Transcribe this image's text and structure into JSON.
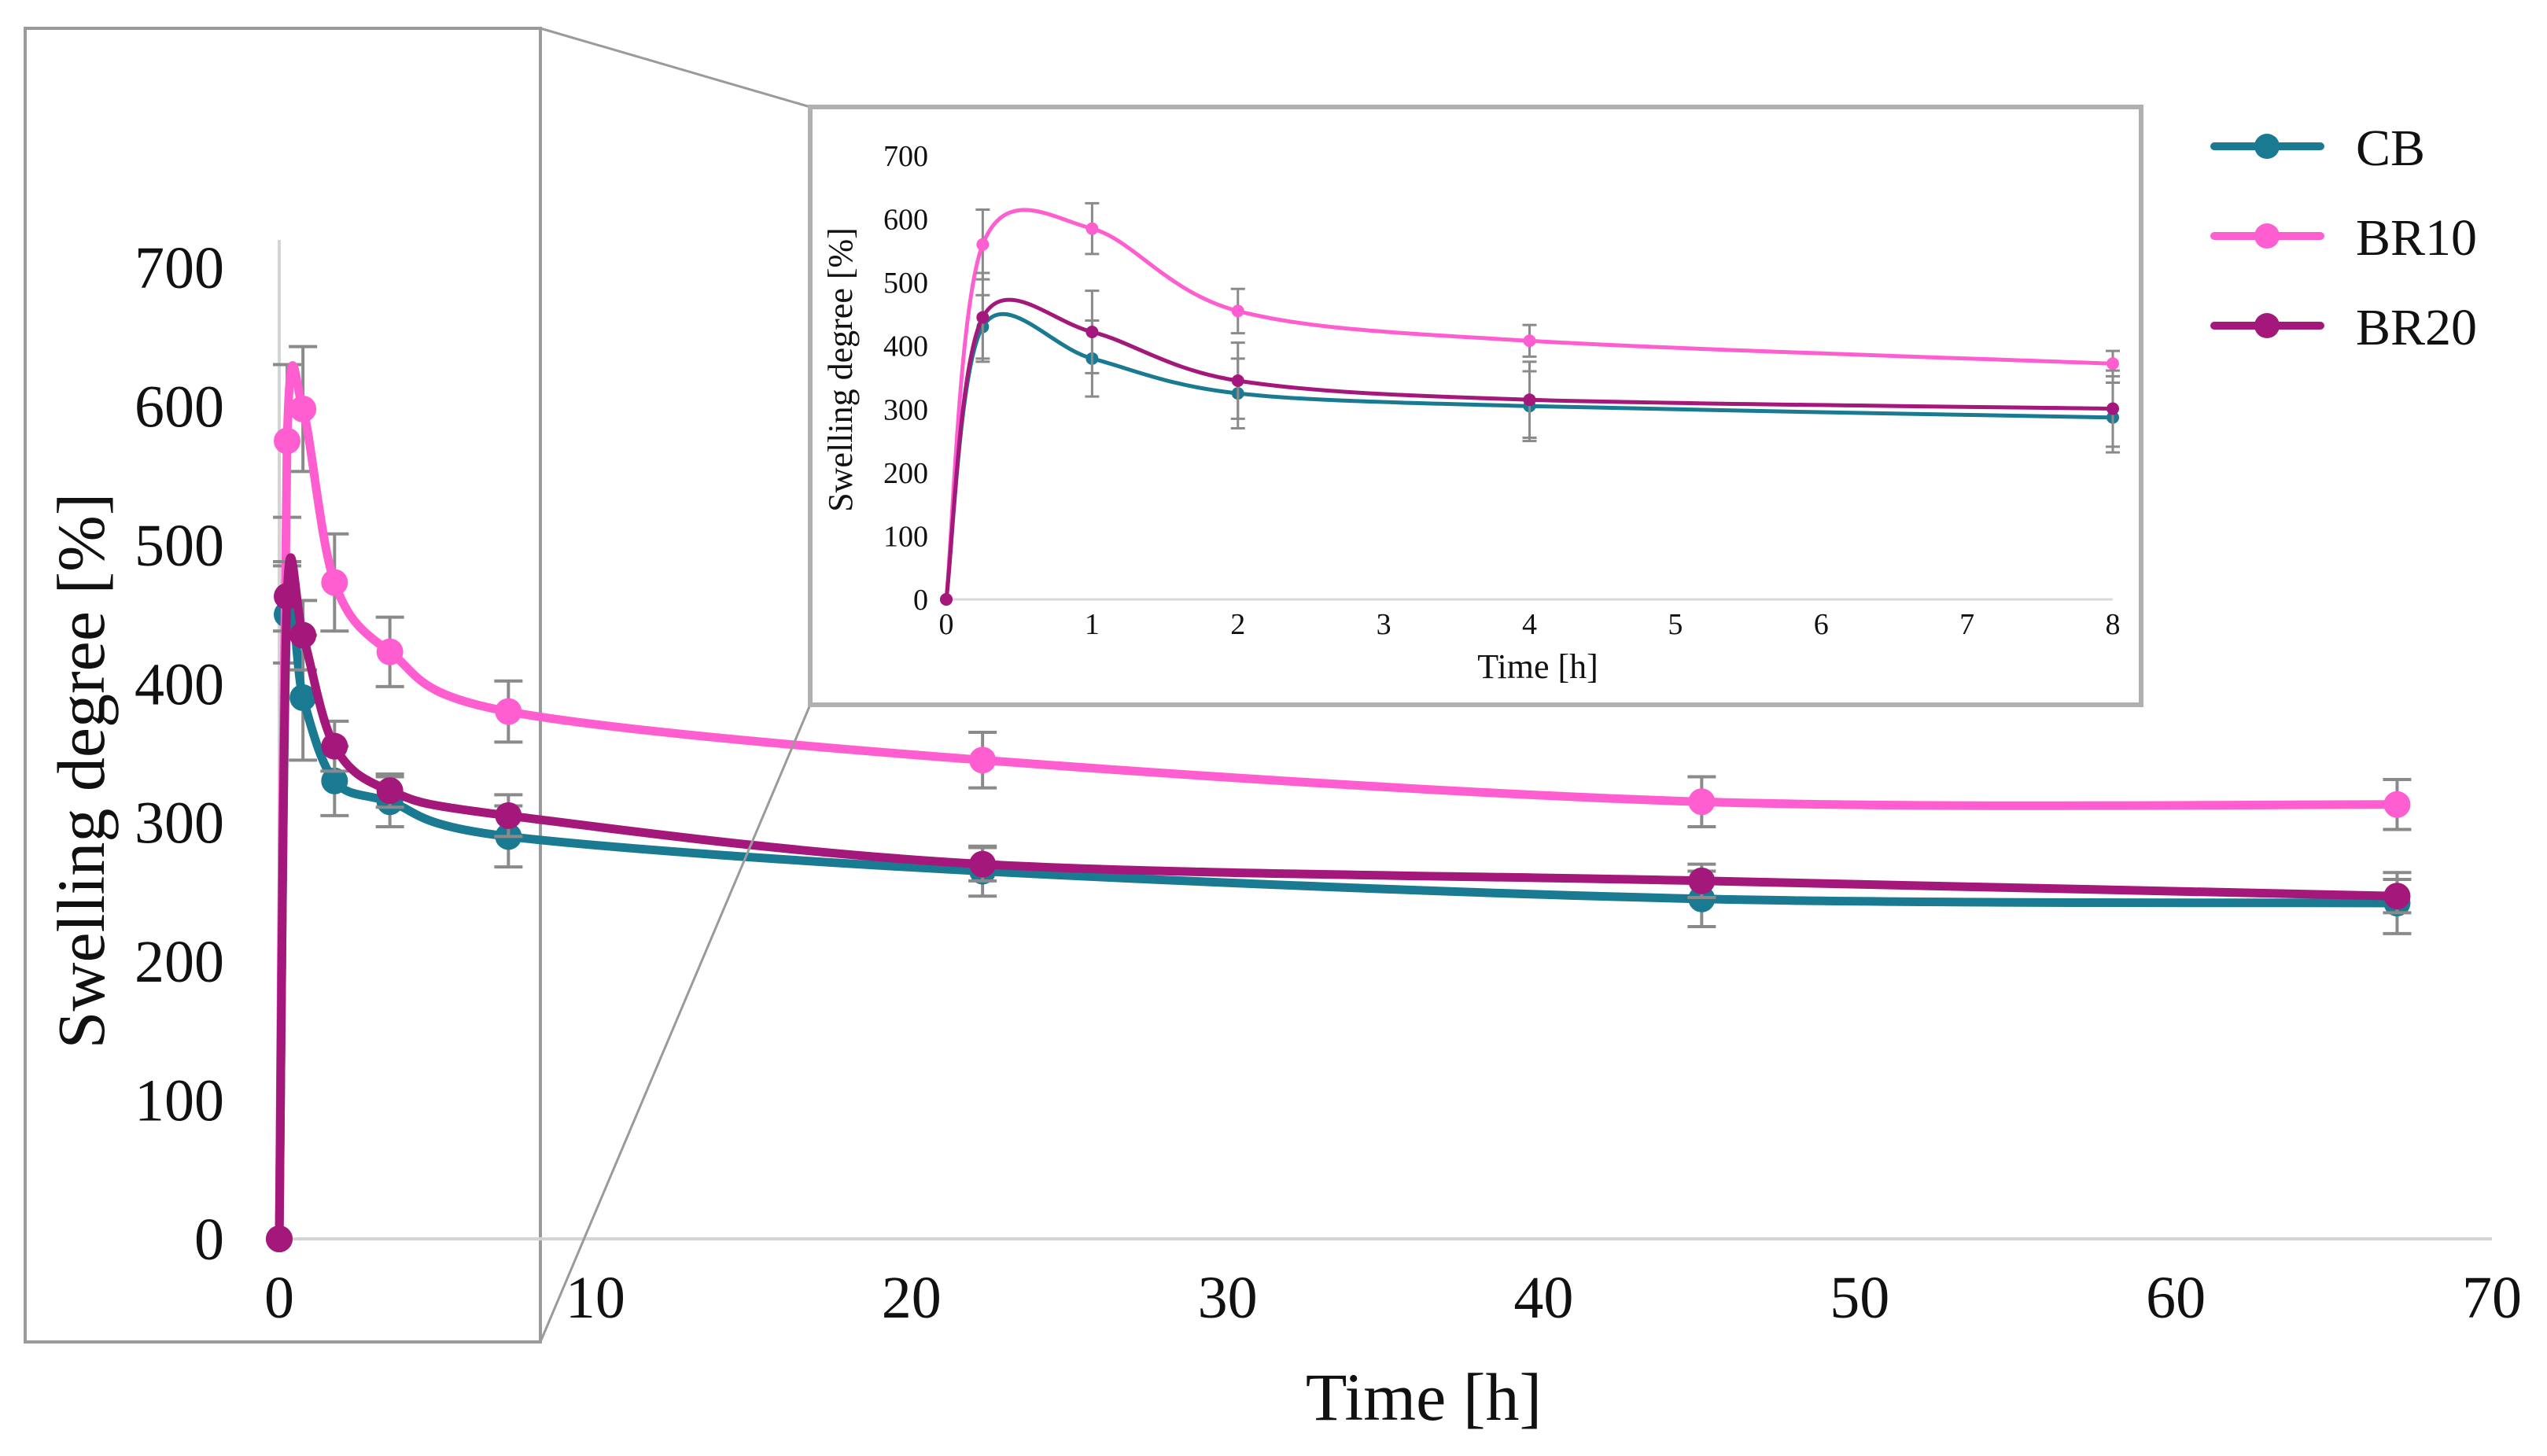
{
  "chart_data": [
    {
      "type": "line",
      "role": "main",
      "xlabel": "Time [h]",
      "ylabel": "Swelling degree [%]",
      "xlim": [
        0,
        70
      ],
      "ylim": [
        0,
        700
      ],
      "x_ticks": [
        "0",
        "10",
        "20",
        "30",
        "40",
        "50",
        "60",
        "70"
      ],
      "y_ticks": [
        "0",
        "100",
        "200",
        "300",
        "400",
        "500",
        "600",
        "700"
      ],
      "grid": false,
      "legend_position": "top-right",
      "series": [
        {
          "name": "CB",
          "color": "#1a7a92",
          "x": [
            0,
            0.25,
            0.75,
            1.75,
            3.5,
            7.25,
            22.25,
            45,
            67
          ],
          "y": [
            0,
            450,
            390,
            330,
            315,
            290,
            265,
            245,
            242
          ],
          "err": [
            0,
            35,
            45,
            25,
            18,
            22,
            18,
            20,
            22
          ]
        },
        {
          "name": "BR10",
          "color": "#ff5ed1",
          "x": [
            0,
            0.25,
            0.75,
            1.75,
            3.5,
            7.25,
            22.25,
            45,
            67
          ],
          "y": [
            0,
            575,
            598,
            473,
            423,
            380,
            345,
            315,
            313
          ],
          "err": [
            0,
            55,
            45,
            35,
            25,
            22,
            20,
            18,
            18
          ]
        },
        {
          "name": "BR20",
          "color": "#a3187a",
          "x": [
            0,
            0.25,
            0.75,
            1.75,
            3.5,
            7.25,
            22.25,
            45,
            67
          ],
          "y": [
            0,
            463,
            435,
            355,
            323,
            305,
            270,
            258,
            247
          ],
          "err": [
            0,
            25,
            25,
            18,
            12,
            15,
            12,
            12,
            12
          ]
        }
      ]
    },
    {
      "type": "line",
      "role": "inset",
      "xlabel": "Time [h]",
      "ylabel": "Swelling degree [%]",
      "xlim": [
        0,
        8
      ],
      "ylim": [
        0,
        700
      ],
      "x_ticks": [
        "0",
        "1",
        "2",
        "3",
        "4",
        "5",
        "6",
        "7",
        "8"
      ],
      "y_ticks": [
        "0",
        "100",
        "200",
        "300",
        "400",
        "500",
        "600",
        "700"
      ],
      "grid": false,
      "series": [
        {
          "name": "CB",
          "color": "#1a7a92",
          "x": [
            0,
            0.25,
            1,
            2,
            4,
            8
          ],
          "y": [
            0,
            430,
            380,
            325,
            305,
            287
          ],
          "err": [
            0,
            50,
            60,
            55,
            55,
            55
          ]
        },
        {
          "name": "BR10",
          "color": "#ff5ed1",
          "x": [
            0,
            0.25,
            1,
            2,
            4,
            8
          ],
          "y": [
            0,
            560,
            585,
            455,
            408,
            372
          ],
          "err": [
            0,
            55,
            40,
            35,
            25,
            20
          ]
        },
        {
          "name": "BR20",
          "color": "#a3187a",
          "x": [
            0,
            0.25,
            1,
            2,
            4,
            8
          ],
          "y": [
            0,
            445,
            422,
            345,
            315,
            301
          ],
          "err": [
            0,
            70,
            65,
            60,
            60,
            60
          ]
        }
      ]
    }
  ]
}
